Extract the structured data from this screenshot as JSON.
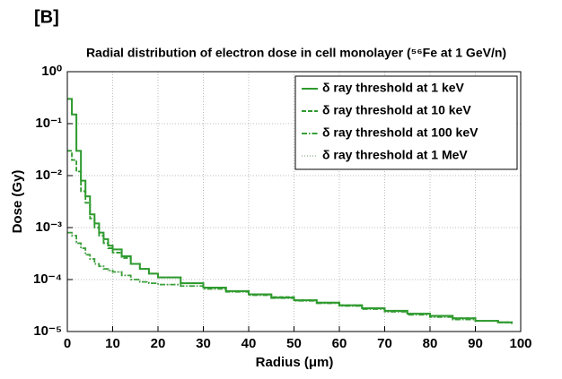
{
  "panel_label": "[B]",
  "chart_data": {
    "type": "step",
    "title": "Radial distribution of electron dose in cell monolayer (⁵⁶Fe at 1 GeV/n)",
    "xlabel": "Radius (μm)",
    "ylabel": "Dose (Gy)",
    "x": [
      0,
      1,
      2,
      3,
      4,
      5,
      6,
      7,
      8,
      9,
      10,
      12,
      14,
      16,
      18,
      20,
      25,
      30,
      35,
      40,
      45,
      50,
      55,
      60,
      65,
      70,
      75,
      80,
      85,
      90,
      95,
      98
    ],
    "series": [
      {
        "name": "δ ray threshold at 1 keV",
        "color": "#2e9a2e",
        "style": "solid",
        "values": [
          0.3,
          0.15,
          0.03,
          0.008,
          0.004,
          0.0018,
          0.0012,
          0.0008,
          0.0006,
          0.00045,
          0.00038,
          0.00028,
          0.0002,
          0.00016,
          0.00013,
          0.00011,
          8.5e-05,
          7e-05,
          6e-05,
          5.2e-05,
          4.5e-05,
          4e-05,
          3.6e-05,
          3.2e-05,
          2.8e-05,
          2.5e-05,
          2.2e-05,
          2e-05,
          1.8e-05,
          1.6e-05,
          1.5e-05,
          1.4e-05
        ]
      },
      {
        "name": "δ ray threshold at 10 keV",
        "color": "#2e9a2e",
        "style": "dashed",
        "values": [
          0.03,
          0.02,
          0.012,
          0.005,
          0.003,
          0.0015,
          0.001,
          0.0007,
          0.0005,
          0.0004,
          0.00033,
          0.00026,
          0.0002,
          0.00016,
          0.00013,
          0.00011,
          8.5e-05,
          7e-05,
          6e-05,
          5.2e-05,
          4.6e-05,
          4e-05,
          3.6e-05,
          3.2e-05,
          2.8e-05,
          2.5e-05,
          2.2e-05,
          2e-05,
          1.8e-05,
          1.6e-05,
          1.5e-05,
          1.4e-05
        ]
      },
      {
        "name": "δ ray threshold at 100 keV",
        "color": "#3aa03a",
        "style": "dashdot",
        "values": [
          0.0008,
          0.0007,
          0.0005,
          0.0004,
          0.0003,
          0.00025,
          0.0002,
          0.00018,
          0.00016,
          0.00015,
          0.00014,
          0.00012,
          0.0001,
          9e-05,
          8.5e-05,
          8e-05,
          7.5e-05,
          6.6e-05,
          5.8e-05,
          5e-05,
          4.4e-05,
          3.9e-05,
          3.5e-05,
          3.1e-05,
          2.7e-05,
          2.4e-05,
          2.1e-05,
          1.9e-05,
          1.7e-05,
          1.6e-05,
          1.5e-05,
          1.4e-05
        ]
      },
      {
        "name": "δ ray threshold at 1 MeV",
        "color": "#b8c8b8",
        "style": "dotted",
        "values": [
          0.0008,
          0.0007,
          0.0005,
          0.0004,
          0.0003,
          0.00025,
          0.0002,
          0.00018,
          0.00016,
          0.00015,
          0.00014,
          0.00012,
          0.0001,
          9e-05,
          8.5e-05,
          8e-05,
          7.5e-05,
          6.6e-05,
          5.8e-05,
          5e-05,
          4.4e-05,
          3.9e-05,
          3.5e-05,
          3.1e-05,
          2.7e-05,
          2.4e-05,
          2.1e-05,
          1.9e-05,
          1.7e-05,
          1.6e-05,
          1.5e-05,
          1.4e-05
        ]
      }
    ],
    "xlim": [
      0,
      100
    ],
    "xticks": [
      0,
      10,
      20,
      30,
      40,
      50,
      60,
      70,
      80,
      90,
      100
    ],
    "ylim": [
      1e-05,
      1
    ],
    "log_y": true,
    "yticks": [
      {
        "value": 1e-05,
        "label": "10⁻⁵"
      },
      {
        "value": 0.0001,
        "label": "10⁻⁴"
      },
      {
        "value": 0.001,
        "label": "10⁻³"
      },
      {
        "value": 0.01,
        "label": "10⁻²"
      },
      {
        "value": 0.1,
        "label": "10⁻¹"
      },
      {
        "value": 1,
        "label": "10⁰"
      }
    ],
    "grid": true,
    "legend": "upper right"
  }
}
